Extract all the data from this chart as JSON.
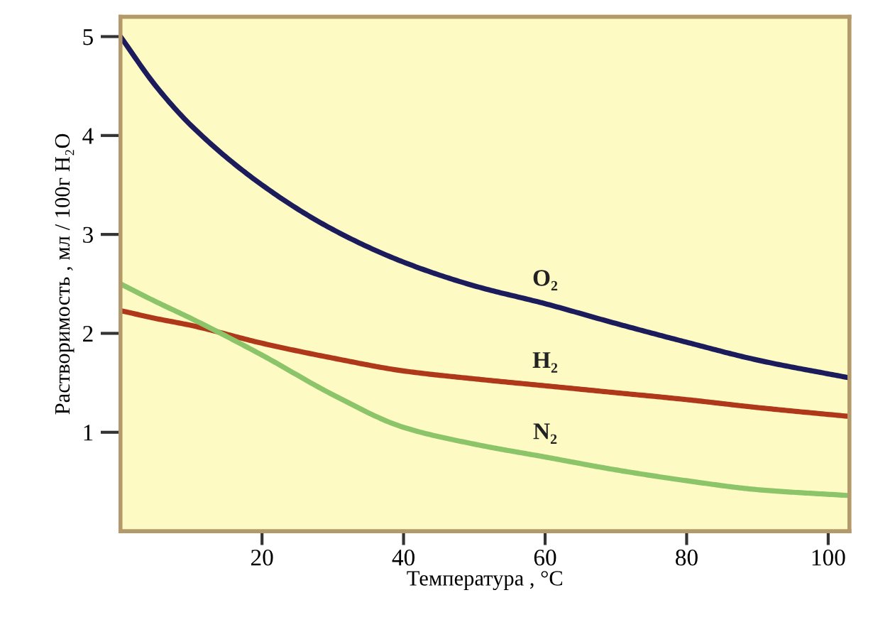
{
  "chart_data": {
    "type": "line",
    "xlabel": "Температура , °C",
    "ylabel": "Растворимость , мл / 100г H₂O",
    "x": [
      0,
      5,
      10,
      20,
      30,
      40,
      50,
      60,
      70,
      80,
      90,
      103
    ],
    "series": [
      {
        "name": "O₂",
        "color": "#1c1c5c",
        "values": [
          5.0,
          4.5,
          4.1,
          3.5,
          3.05,
          2.72,
          2.48,
          2.3,
          2.1,
          1.91,
          1.73,
          1.55
        ]
      },
      {
        "name": "H₂",
        "color": "#b0381a",
        "values": [
          2.23,
          2.15,
          2.08,
          1.9,
          1.75,
          1.62,
          1.54,
          1.47,
          1.4,
          1.33,
          1.25,
          1.16
        ]
      },
      {
        "name": "N₂",
        "color": "#8cc46a",
        "values": [
          2.5,
          2.32,
          2.15,
          1.78,
          1.38,
          1.05,
          0.88,
          0.75,
          0.62,
          0.51,
          0.42,
          0.36
        ]
      }
    ],
    "xlim": [
      0,
      103
    ],
    "ylim": [
      0,
      5.2
    ],
    "xticks": [
      20,
      40,
      60,
      80,
      100
    ],
    "yticks": [
      1,
      2,
      3,
      4,
      5
    ],
    "grid": false,
    "legend": false,
    "line_style": "solid"
  }
}
